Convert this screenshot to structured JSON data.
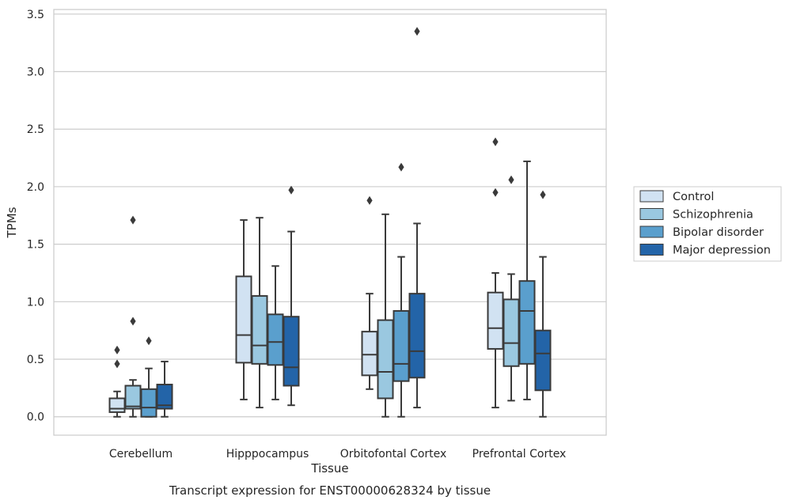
{
  "caption": "Transcript expression for ENST00000628324 by tissue",
  "chart_data": {
    "type": "boxplot",
    "xlabel": "Tissue",
    "ylabel": "TPMs",
    "ylim": [
      -0.16,
      3.54
    ],
    "yticks": [
      "0.0",
      "0.5",
      "1.0",
      "1.5",
      "2.0",
      "2.5",
      "3.0",
      "3.5"
    ],
    "categories": [
      "Cerebellum",
      "Hipppocampus",
      "Orbitofontal Cortex",
      "Prefrontal Cortex"
    ],
    "grid": "horizontal",
    "legend_position": "right",
    "series": [
      {
        "name": "Control",
        "color": "#d1e2f2",
        "boxes": [
          {
            "whislo": 0.0,
            "q1": 0.04,
            "med": 0.07,
            "q3": 0.16,
            "whishi": 0.22,
            "fliers": [
              0.46,
              0.58
            ]
          },
          {
            "whislo": 0.15,
            "q1": 0.47,
            "med": 0.71,
            "q3": 1.22,
            "whishi": 1.71,
            "fliers": []
          },
          {
            "whislo": 0.24,
            "q1": 0.36,
            "med": 0.54,
            "q3": 0.74,
            "whishi": 1.07,
            "fliers": [
              1.88
            ]
          },
          {
            "whislo": 0.08,
            "q1": 0.59,
            "med": 0.77,
            "q3": 1.08,
            "whishi": 1.25,
            "fliers": [
              1.95,
              2.39
            ]
          }
        ]
      },
      {
        "name": "Schizophrenia",
        "color": "#9ac8e0",
        "boxes": [
          {
            "whislo": 0.0,
            "q1": 0.07,
            "med": 0.09,
            "q3": 0.27,
            "whishi": 0.32,
            "fliers": [
              0.83,
              1.71
            ]
          },
          {
            "whislo": 0.08,
            "q1": 0.46,
            "med": 0.62,
            "q3": 1.05,
            "whishi": 1.73,
            "fliers": []
          },
          {
            "whislo": 0.0,
            "q1": 0.16,
            "med": 0.39,
            "q3": 0.84,
            "whishi": 1.76,
            "fliers": []
          },
          {
            "whislo": 0.14,
            "q1": 0.44,
            "med": 0.64,
            "q3": 1.02,
            "whishi": 1.24,
            "fliers": [
              2.06
            ]
          }
        ]
      },
      {
        "name": "Bipolar disorder",
        "color": "#5a9fcd",
        "boxes": [
          {
            "whislo": 0.0,
            "q1": 0.0,
            "med": 0.08,
            "q3": 0.24,
            "whishi": 0.42,
            "fliers": [
              0.66
            ]
          },
          {
            "whislo": 0.15,
            "q1": 0.45,
            "med": 0.65,
            "q3": 0.89,
            "whishi": 1.31,
            "fliers": []
          },
          {
            "whislo": 0.0,
            "q1": 0.31,
            "med": 0.46,
            "q3": 0.92,
            "whishi": 1.39,
            "fliers": [
              2.17
            ]
          },
          {
            "whislo": 0.15,
            "q1": 0.46,
            "med": 0.92,
            "q3": 1.18,
            "whishi": 2.22,
            "fliers": []
          }
        ]
      },
      {
        "name": "Major depression",
        "color": "#2364a8",
        "boxes": [
          {
            "whislo": 0.0,
            "q1": 0.07,
            "med": 0.1,
            "q3": 0.28,
            "whishi": 0.48,
            "fliers": []
          },
          {
            "whislo": 0.1,
            "q1": 0.27,
            "med": 0.43,
            "q3": 0.87,
            "whishi": 1.61,
            "fliers": [
              1.97
            ]
          },
          {
            "whislo": 0.08,
            "q1": 0.34,
            "med": 0.57,
            "q3": 1.07,
            "whishi": 1.68,
            "fliers": [
              3.35
            ]
          },
          {
            "whislo": 0.0,
            "q1": 0.23,
            "med": 0.55,
            "q3": 0.75,
            "whishi": 1.39,
            "fliers": [
              1.93
            ]
          }
        ]
      }
    ]
  }
}
